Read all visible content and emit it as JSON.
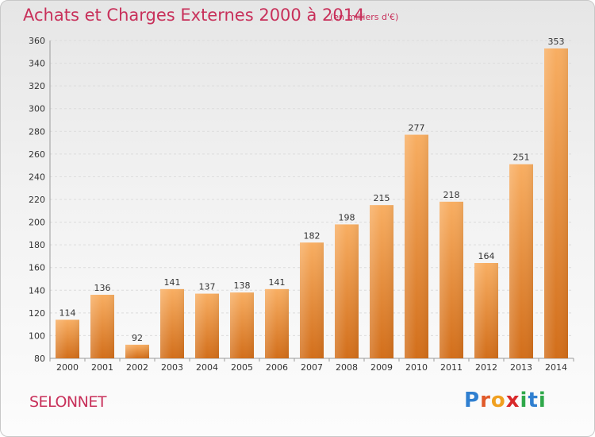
{
  "header": {
    "title": "Achats et Charges Externes 2000 à 2014",
    "subtitle": "(en milliers d'€)"
  },
  "footer": {
    "location": "SELONNET",
    "logo_text": "Proxiti"
  },
  "colors": {
    "title": "#c8305a",
    "bar_light": "#f6a85a",
    "bar_dark": "#d8741c",
    "grid": "#dcdcdc"
  },
  "chart_data": {
    "type": "bar",
    "title": "Achats et Charges Externes 2000 à 2014",
    "subtitle": "(en milliers d'€)",
    "categories": [
      "2000",
      "2001",
      "2002",
      "2003",
      "2004",
      "2005",
      "2006",
      "2007",
      "2008",
      "2009",
      "2010",
      "2011",
      "2012",
      "2013",
      "2014"
    ],
    "values": [
      114,
      136,
      92,
      141,
      137,
      138,
      141,
      182,
      198,
      215,
      277,
      218,
      164,
      251,
      353
    ],
    "ylim": [
      80,
      360
    ],
    "yticks": [
      80,
      100,
      120,
      140,
      160,
      180,
      200,
      220,
      240,
      260,
      280,
      300,
      320,
      340,
      360
    ],
    "grid": true,
    "data_labels": true
  }
}
